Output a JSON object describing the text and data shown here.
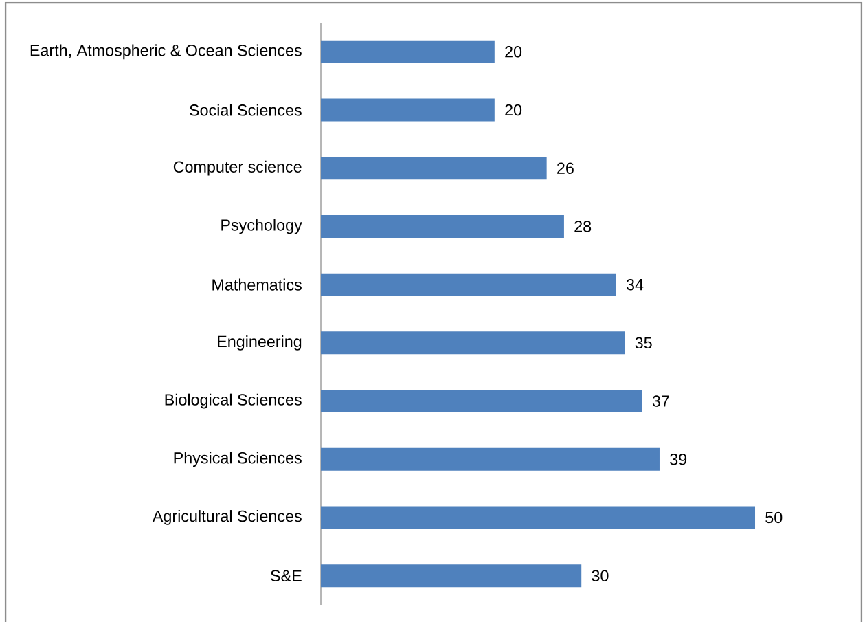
{
  "chart_data": {
    "type": "bar",
    "orientation": "horizontal",
    "categories": [
      "Earth, Atmospheric & Ocean Sciences",
      "Social Sciences",
      "Computer science",
      "Psychology",
      "Mathematics",
      "Engineering",
      "Biological Sciences",
      "Physical Sciences",
      "Agricultural Sciences",
      "S&E"
    ],
    "values": [
      20,
      20,
      26,
      28,
      34,
      35,
      37,
      39,
      50,
      30
    ],
    "color": "#4f81bd",
    "data_labels": true,
    "tick_labels": "y"
  }
}
